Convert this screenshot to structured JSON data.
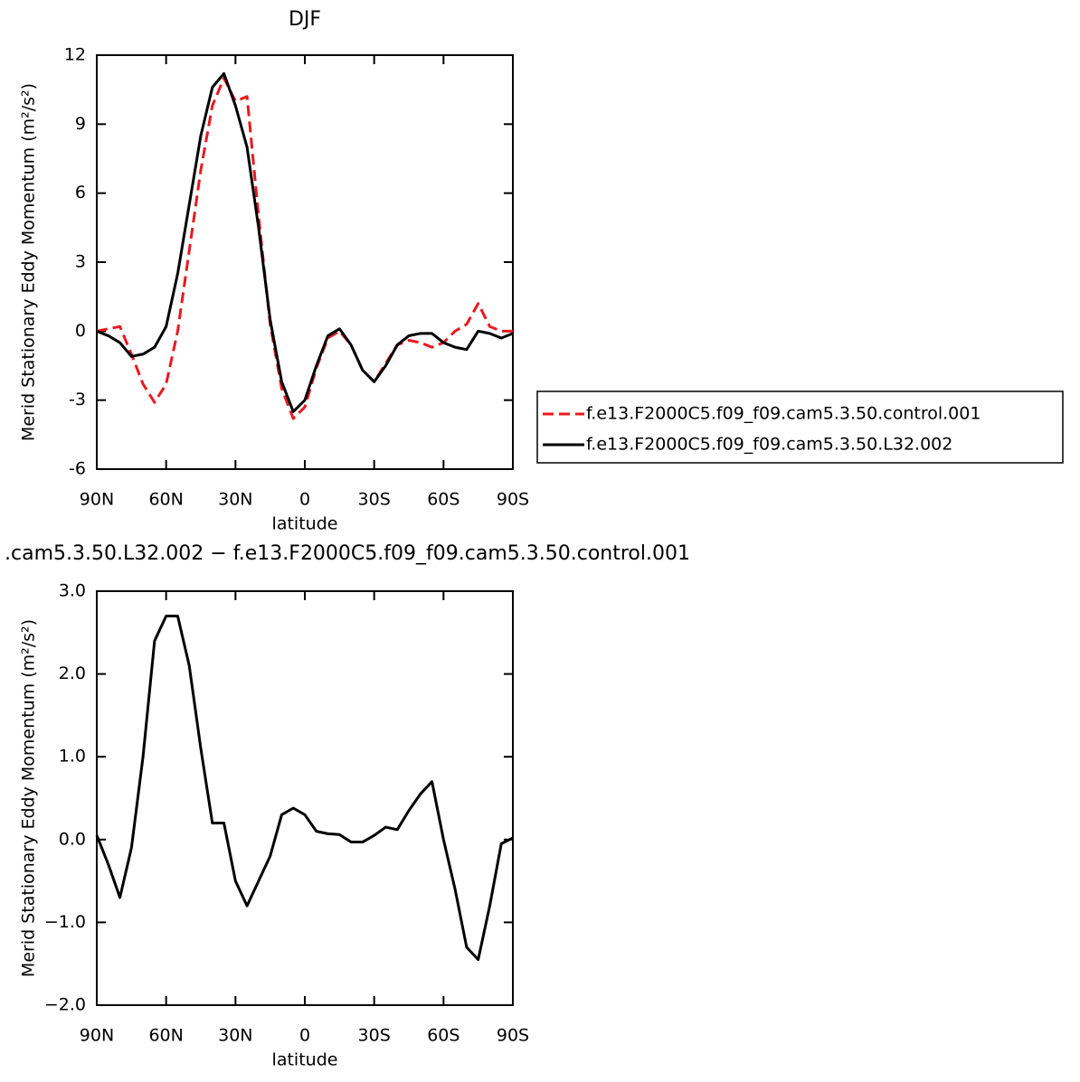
{
  "chart_data": [
    {
      "type": "line",
      "title": "DJF",
      "x_label": "latitude",
      "y_label": "Merid Stationary Eddy Momentum (m²/s²)",
      "x": [
        90,
        85,
        80,
        75,
        70,
        65,
        60,
        55,
        50,
        45,
        40,
        35,
        30,
        25,
        20,
        15,
        10,
        5,
        0,
        -5,
        -10,
        -15,
        -20,
        -25,
        -30,
        -35,
        -40,
        -45,
        -50,
        -55,
        -60,
        -65,
        -70,
        -75,
        -80,
        -85,
        -90
      ],
      "series": [
        {
          "name": "f.e13.F2000C5.f09_f09.cam5.3.50.control.001",
          "color": "#e8191f",
          "dash": true,
          "values": [
            0,
            0.1,
            0.2,
            -1.0,
            -2.3,
            -3.1,
            -2.3,
            0.0,
            3.5,
            7.0,
            9.8,
            11.0,
            10.0,
            10.2,
            5.0,
            0.3,
            -2.5,
            -3.8,
            -3.3,
            -1.6,
            -0.3,
            0.0,
            -0.6,
            -1.7,
            -2.2,
            -1.4,
            -0.6,
            -0.4,
            -0.5,
            -0.7,
            -0.5,
            0.0,
            0.3,
            1.2,
            0.2,
            0.0,
            0.0
          ]
        },
        {
          "name": "f.e13.F2000C5.f09_f09.cam5.3.50.L32.002",
          "color": "#000000",
          "dash": false,
          "values": [
            0,
            -0.2,
            -0.5,
            -1.1,
            -1.0,
            -0.7,
            0.2,
            2.5,
            5.5,
            8.5,
            10.6,
            11.2,
            9.8,
            8.0,
            4.5,
            0.5,
            -2.2,
            -3.5,
            -3.0,
            -1.5,
            -0.2,
            0.1,
            -0.6,
            -1.7,
            -2.2,
            -1.5,
            -0.6,
            -0.2,
            -0.1,
            -0.1,
            -0.5,
            -0.7,
            -0.8,
            0.0,
            -0.1,
            -0.3,
            -0.1
          ]
        }
      ],
      "xlim": [
        90,
        -90
      ],
      "xticks": [
        {
          "value": 90,
          "label": "90N"
        },
        {
          "value": 60,
          "label": "60N"
        },
        {
          "value": 30,
          "label": "30N"
        },
        0,
        {
          "value": -30,
          "label": "30S"
        },
        {
          "value": -60,
          "label": "60S"
        },
        {
          "value": -90,
          "label": "90S"
        }
      ],
      "ylim": [
        -6,
        12
      ],
      "yticks": [
        -6,
        -3,
        0,
        3,
        6,
        9,
        12
      ],
      "legend": "outside-right"
    },
    {
      "type": "line",
      "title": ".cam5.3.50.L32.002 − f.e13.F2000C5.f09_f09.cam5.3.50.control.001",
      "x_label": "latitude",
      "y_label": "Merid Stationary Eddy Momentum (m²/s²)",
      "x": [
        90,
        85,
        80,
        75,
        70,
        65,
        60,
        55,
        50,
        45,
        40,
        35,
        30,
        25,
        20,
        15,
        10,
        5,
        0,
        -5,
        -10,
        -15,
        -20,
        -25,
        -30,
        -35,
        -40,
        -45,
        -50,
        -55,
        -60,
        -65,
        -70,
        -75,
        -80,
        -85,
        -90
      ],
      "series": [
        {
          "color": "#000000",
          "dash": false,
          "values": [
            0.05,
            -0.3,
            -0.7,
            -0.1,
            1.0,
            2.4,
            2.7,
            2.7,
            2.1,
            1.1,
            0.2,
            0.2,
            -0.5,
            -0.8,
            -0.5,
            -0.2,
            0.3,
            0.38,
            0.3,
            0.1,
            0.07,
            0.06,
            -0.03,
            -0.03,
            0.05,
            0.15,
            0.12,
            0.35,
            0.55,
            0.7,
            0.0,
            -0.6,
            -1.3,
            -1.45,
            -0.8,
            -0.05,
            0.02
          ]
        }
      ],
      "xlim": [
        90,
        -90
      ],
      "xticks": [
        {
          "value": 90,
          "label": "90N"
        },
        {
          "value": 60,
          "label": "60N"
        },
        {
          "value": 30,
          "label": "30N"
        },
        0,
        {
          "value": -30,
          "label": "30S"
        },
        {
          "value": -60,
          "label": "60S"
        },
        {
          "value": -90,
          "label": "90S"
        }
      ],
      "ylim": [
        -2,
        3
      ],
      "yticks": [
        {
          "value": -2,
          "label": "−2.0"
        },
        {
          "value": -1,
          "label": "−1.0"
        },
        {
          "value": 0,
          "label": "0.0"
        },
        {
          "value": 1,
          "label": "1.0"
        },
        {
          "value": 2,
          "label": "2.0"
        },
        {
          "value": 3,
          "label": "3.0"
        }
      ]
    }
  ]
}
